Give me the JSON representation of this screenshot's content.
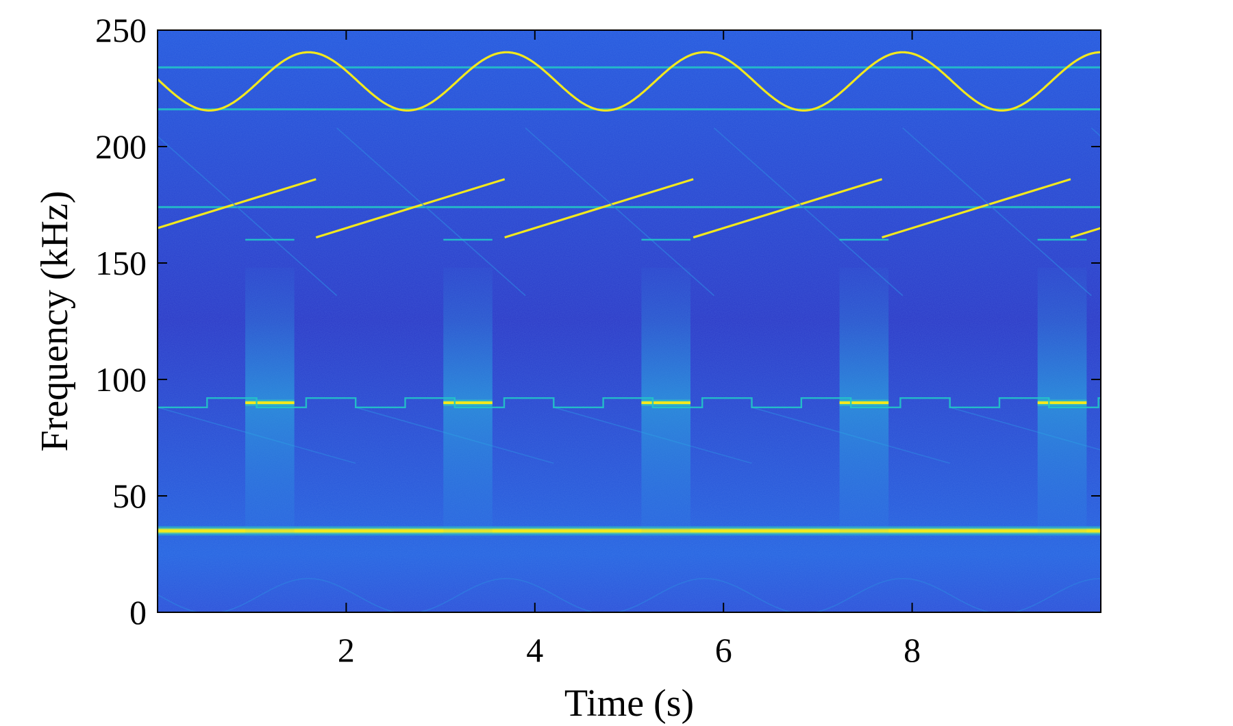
{
  "chart_data": {
    "type": "heatmap",
    "title": "",
    "xlabel": "Time (s)",
    "ylabel": "Frequency (kHz)",
    "xlim": [
      0,
      10
    ],
    "ylim": [
      0,
      250
    ],
    "xticks": [
      2,
      4,
      6,
      8
    ],
    "yticks": [
      0,
      50,
      100,
      150,
      200,
      250
    ],
    "grid": false,
    "colormap": "parula",
    "colors": {
      "background": "#1f3fd9",
      "faint": "#2f7de0",
      "medium": "#22c7c7",
      "strong": "#f2e81e"
    },
    "components": [
      {
        "name": "constant tone 35 kHz",
        "kind": "constant",
        "t": [
          0,
          10
        ],
        "f": [
          35,
          35
        ],
        "intensity": "strong"
      },
      {
        "name": "constant tone 174 kHz",
        "kind": "constant",
        "t": [
          0,
          10
        ],
        "f": [
          174,
          174
        ],
        "intensity": "medium"
      },
      {
        "name": "constant tone 216 kHz",
        "kind": "constant",
        "t": [
          0,
          10
        ],
        "f": [
          216,
          216
        ],
        "intensity": "medium"
      },
      {
        "name": "constant tone 234 kHz",
        "kind": "constant",
        "t": [
          0,
          10
        ],
        "f": [
          234,
          234
        ],
        "intensity": "medium"
      },
      {
        "name": "sinusoidal FM",
        "kind": "sine",
        "center": 228,
        "amplitude": 12.5,
        "period": 2.1,
        "min_at_t": 0.55,
        "intensity": "strong"
      },
      {
        "name": "up-chirp",
        "kind": "sawtooth",
        "f_start": 161,
        "f_end": 186,
        "period": 2.0,
        "offset": -0.32,
        "intensity": "strong"
      },
      {
        "name": "down-chirp upper",
        "kind": "sawtooth",
        "f_start": 208,
        "f_end": 136,
        "period": 2.0,
        "offset": -0.1,
        "intensity": "faint"
      },
      {
        "name": "down-chirp lower",
        "kind": "sawtooth",
        "f_start": 88,
        "f_end": 64,
        "period": 2.1,
        "offset": 0.0,
        "intensity": "faint"
      },
      {
        "name": "hop burst 90 kHz",
        "kind": "bursts",
        "f": 90,
        "starts": [
          0.93,
          3.03,
          5.13,
          7.23,
          9.33
        ],
        "duration": 0.52,
        "intensity": "strong"
      },
      {
        "name": "burst 160 kHz",
        "kind": "bursts",
        "f": 160,
        "starts": [
          0.93,
          3.03,
          5.13,
          7.23,
          9.33
        ],
        "duration": 0.52,
        "intensity": "medium"
      },
      {
        "name": "FSK square wave",
        "kind": "square",
        "levels": [
          88,
          92
        ],
        "period": 1.05,
        "intensity": "medium"
      },
      {
        "name": "low-frequency arcs",
        "kind": "sine",
        "center": 7,
        "amplitude": 7.5,
        "period": 2.1,
        "min_at_t": 0.55,
        "intensity": "faint"
      }
    ]
  }
}
